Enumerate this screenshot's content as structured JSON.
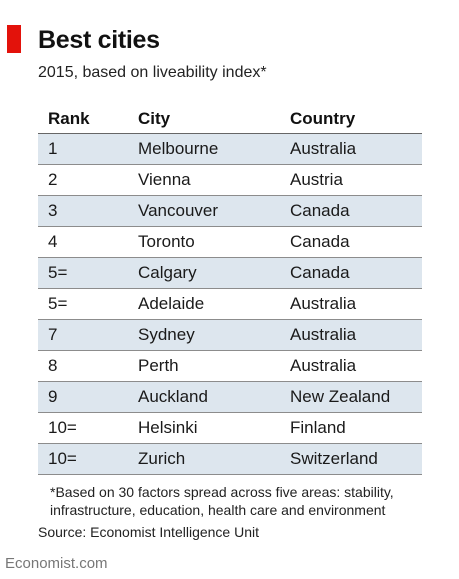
{
  "chart_data": {
    "type": "table",
    "title": "Best cities",
    "subtitle": "2015, based on liveability index*",
    "columns": [
      "Rank",
      "City",
      "Country"
    ],
    "rows": [
      [
        "1",
        "Melbourne",
        "Australia"
      ],
      [
        "2",
        "Vienna",
        "Austria"
      ],
      [
        "3",
        "Vancouver",
        "Canada"
      ],
      [
        "4",
        "Toronto",
        "Canada"
      ],
      [
        "5=",
        "Calgary",
        "Canada"
      ],
      [
        "5=",
        "Adelaide",
        "Australia"
      ],
      [
        "7",
        "Sydney",
        "Australia"
      ],
      [
        "8",
        "Perth",
        "Australia"
      ],
      [
        "9",
        "Auckland",
        "New Zealand"
      ],
      [
        "10=",
        "Helsinki",
        "Finland"
      ],
      [
        "10=",
        "Zurich",
        "Switzerland"
      ]
    ],
    "footnote": "*Based on 30 factors spread across five areas: stability, infrastructure, education, health care and environment",
    "source": "Source: Economist Intelligence Unit"
  },
  "brand": "Economist.com",
  "colors": {
    "accent": "#e3120b",
    "row_shade": "#dde6ee"
  }
}
